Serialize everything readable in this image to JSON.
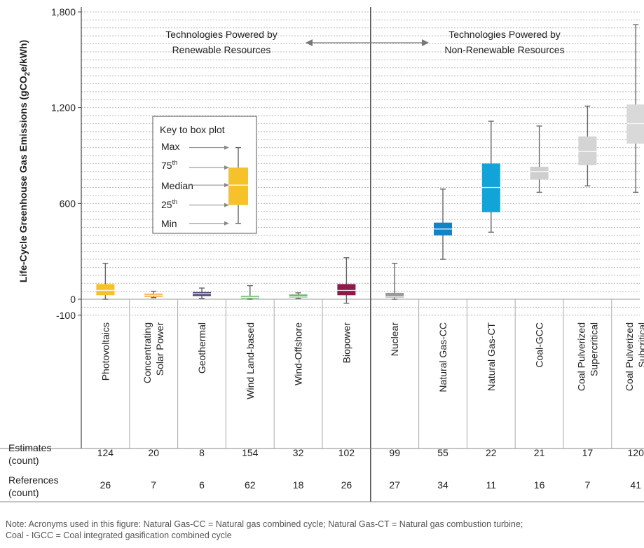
{
  "chart_data": {
    "type": "box",
    "ylabel": "Life-Cycle Greenhouse Gas Emissions (gCO2e/kWh)",
    "ylabel_parts": {
      "pre": "Life-Cycle Greenhouse Gas Emissions (gCO",
      "sub": "2",
      "post": "e/kWh)"
    },
    "ylim": [
      -100,
      1800
    ],
    "y_ticks": [
      {
        "value": 1800,
        "label": "1,800"
      },
      {
        "value": 1200,
        "label": "1,200"
      },
      {
        "value": 600,
        "label": "600"
      },
      {
        "value": 0,
        "label": "0"
      },
      {
        "value": -100,
        "label": "-100"
      }
    ],
    "grid": "dashed horizontal every 50",
    "colors": {
      "Photovoltaics": "#f6c22c",
      "Concentrating Solar Power": "#f6a735",
      "Geothermal": "#4d4776",
      "Wind Land-based": "#6bbd6e",
      "Wind-Offshore": "#6bbd6e",
      "Biopower": "#8c1b4c",
      "Nuclear": "#9a9a9a",
      "Natural Gas-CC": "#1183c6",
      "Natural Gas-CT": "#12a3d8",
      "Coal-GCC": "#cfcfcf",
      "Coal Pulverized Supercritical": "#d4d4d4",
      "Coal Pulverized Subcritical": "#d9d9d9"
    },
    "categories": [
      {
        "name": "Photovoltaics",
        "lines": [
          "Photovoltaics"
        ],
        "min": 0,
        "q1": 25,
        "median": 55,
        "q3": 95,
        "max": 225,
        "estimates": "124",
        "references": "26"
      },
      {
        "name": "Concentrating Solar Power",
        "lines": [
          "Concentrating",
          "Solar Power"
        ],
        "min": 10,
        "q1": 15,
        "median": 25,
        "q3": 35,
        "max": 50,
        "estimates": "20",
        "references": "7"
      },
      {
        "name": "Geothermal",
        "lines": [
          "Geothermal"
        ],
        "min": 5,
        "q1": 20,
        "median": 35,
        "q3": 45,
        "max": 70,
        "estimates": "8",
        "references": "6"
      },
      {
        "name": "Wind Land-based",
        "lines": [
          "Wind Land-based"
        ],
        "min": 0,
        "q1": 5,
        "median": 12,
        "q3": 22,
        "max": 85,
        "estimates": "154",
        "references": "62"
      },
      {
        "name": "Wind-Offshore",
        "lines": [
          "Wind-Offshore"
        ],
        "min": 5,
        "q1": 10,
        "median": 15,
        "q3": 30,
        "max": 40,
        "estimates": "32",
        "references": "18"
      },
      {
        "name": "Biopower",
        "lines": [
          "Biopower"
        ],
        "min": -25,
        "q1": 25,
        "median": 55,
        "q3": 95,
        "max": 260,
        "estimates": "102",
        "references": "26"
      },
      {
        "name": "Nuclear",
        "lines": [
          "Nuclear"
        ],
        "min": 0,
        "q1": 10,
        "median": 15,
        "q3": 40,
        "max": 225,
        "estimates": "99",
        "references": "27"
      },
      {
        "name": "Natural Gas-CC",
        "lines": [
          "Natural Gas-CC"
        ],
        "min": 250,
        "q1": 400,
        "median": 440,
        "q3": 480,
        "max": 690,
        "estimates": "55",
        "references": "34"
      },
      {
        "name": "Natural Gas-CT",
        "lines": [
          "Natural Gas-CT"
        ],
        "min": 420,
        "q1": 545,
        "median": 700,
        "q3": 850,
        "max": 1115,
        "estimates": "22",
        "references": "11"
      },
      {
        "name": "Coal-GCC",
        "lines": [
          "Coal-GCC"
        ],
        "min": 670,
        "q1": 750,
        "median": 800,
        "q3": 830,
        "max": 1085,
        "estimates": "21",
        "references": "16"
      },
      {
        "name": "Coal Pulverized Supercritical",
        "lines": [
          "Coal Pulverized",
          "Supercritical"
        ],
        "min": 710,
        "q1": 840,
        "median": 925,
        "q3": 1020,
        "max": 1210,
        "estimates": "17",
        "references": "7"
      },
      {
        "name": "Coal Pulverized Subcritical",
        "lines": [
          "Coal Pulverized",
          "Subcritical"
        ],
        "min": 670,
        "q1": 975,
        "median": 1100,
        "q3": 1220,
        "max": 1720,
        "estimates": "120",
        "references": "41"
      }
    ],
    "row_labels": {
      "estimates": [
        "Estimates",
        "(count)"
      ],
      "references": [
        "References",
        "(count)"
      ]
    },
    "group_labels": {
      "renewable": [
        "Technologies Powered by",
        "Renewable Resources"
      ],
      "non_renewable": [
        "Technologies Powered by",
        "Non-Renewable Resources"
      ]
    },
    "key": {
      "title": "Key to box plot",
      "max": "Max",
      "q3": "75",
      "q3_sup": "th",
      "median": "Median",
      "q1": "25",
      "q1_sup": "th",
      "min": "Min",
      "sample": {
        "min": 475,
        "q1": 590,
        "median": 715,
        "q3": 825,
        "max": 950
      }
    }
  },
  "note": {
    "line1": "Note: Acronyms used in this figure: Natural Gas-CC = Natural gas combined cycle; Natural Gas-CT = Natural gas combustion turbine;",
    "line2": "Coal - IGCC = Coal integrated gasification combined cycle"
  }
}
